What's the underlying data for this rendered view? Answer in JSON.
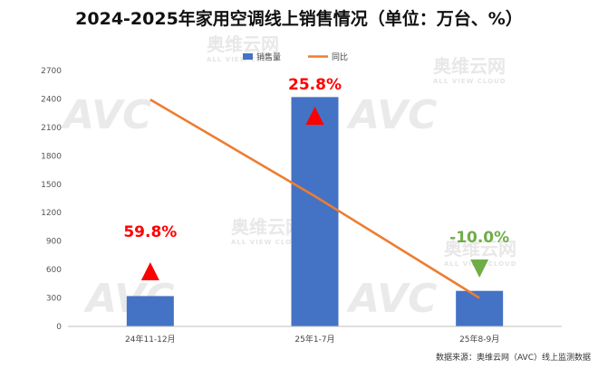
{
  "title": "2024-2025年家用空调线上销售情况（单位：万台、%）",
  "source": "数据来源：奥维云网（AVC）线上监测数据",
  "watermark": {
    "logo": "AVC",
    "cn": "奥维云网",
    "en": "ALL VIEW CLOUD"
  },
  "colors": {
    "bar": "#4472c4",
    "line": "#ed7d31",
    "up": "#ff0000",
    "down": "#70ad47"
  },
  "chart_data": {
    "type": "bar",
    "categories": [
      "24年11-12月",
      "25年1-7月",
      "25年8-9月"
    ],
    "series": [
      {
        "name": "销售量",
        "type": "bar",
        "values": [
          320,
          2420,
          375
        ]
      },
      {
        "name": "同比",
        "type": "line",
        "values": [
          59.8,
          25.8,
          -10.0
        ]
      }
    ],
    "data_labels": [
      "59.8%",
      "25.8%",
      "-10.0%"
    ],
    "trend": [
      "up",
      "up",
      "down"
    ],
    "yticks": [
      0,
      300,
      600,
      900,
      1200,
      1500,
      1800,
      2100,
      2400,
      2700
    ],
    "ylim": [
      0,
      2700
    ],
    "line_axis_range": [
      -20,
      70
    ],
    "legend_position": "top-center",
    "grid": false
  }
}
